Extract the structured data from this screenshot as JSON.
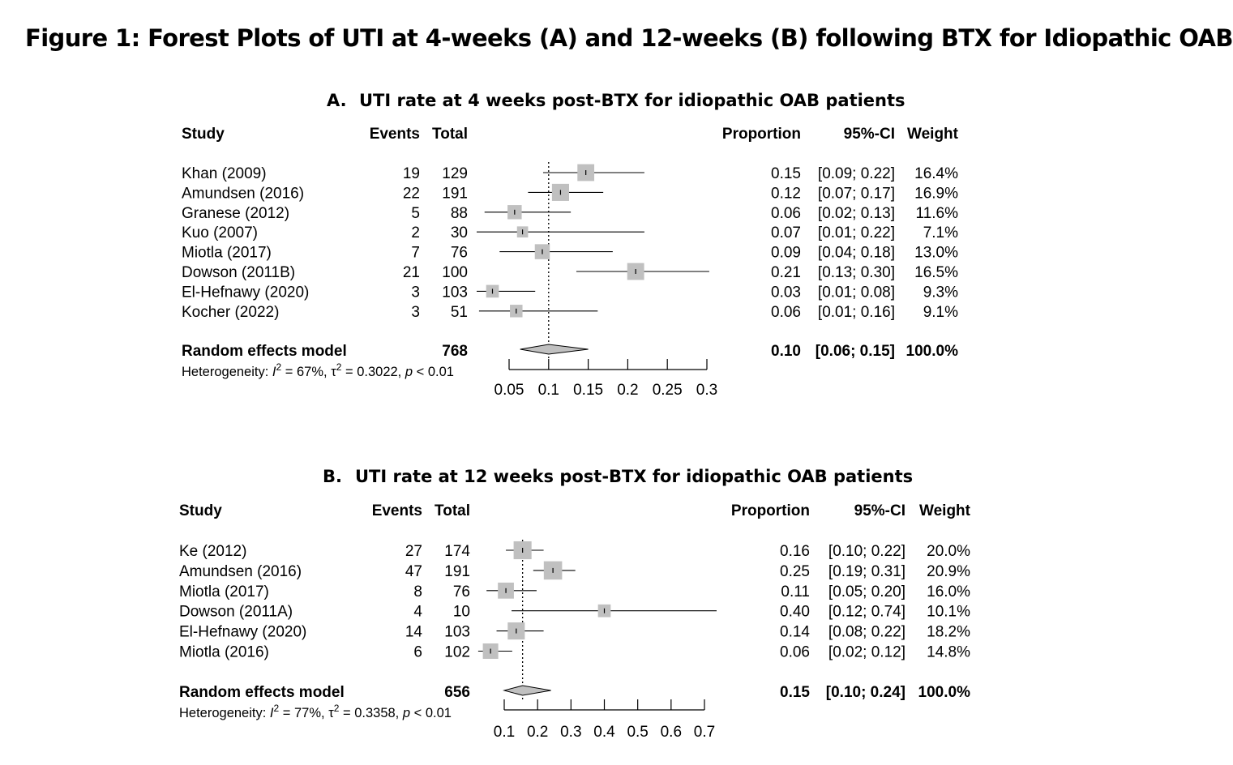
{
  "figure_title": "Figure 1: Forest Plots of UTI at 4-weeks (A) and 12-weeks (B) following BTX for Idiopathic OAB",
  "chart_data": [
    {
      "type": "forest",
      "panel_label": "A.",
      "title": "UTI rate at 4 weeks post-BTX for idiopathic OAB patients",
      "columns": {
        "study": "Study",
        "events": "Events",
        "total": "Total",
        "proportion": "Proportion",
        "ci": "95%-CI",
        "weight": "Weight"
      },
      "studies": [
        {
          "name": "Khan (2009)",
          "events": "19",
          "total": "129",
          "proportion": "0.15",
          "ci": "[0.09; 0.22]",
          "weight": "16.4%",
          "est": 0.147,
          "lo": 0.093,
          "hi": 0.221,
          "w": 16.4
        },
        {
          "name": "Amundsen (2016)",
          "events": "22",
          "total": "191",
          "proportion": "0.12",
          "ci": "[0.07; 0.17]",
          "weight": "16.9%",
          "est": 0.115,
          "lo": 0.074,
          "hi": 0.169,
          "w": 16.9
        },
        {
          "name": "Granese (2012)",
          "events": "5",
          "total": "88",
          "proportion": "0.06",
          "ci": "[0.02; 0.13]",
          "weight": "11.6%",
          "est": 0.057,
          "lo": 0.019,
          "hi": 0.128,
          "w": 11.6
        },
        {
          "name": "Kuo (2007)",
          "events": "2",
          "total": "30",
          "proportion": "0.07",
          "ci": "[0.01; 0.22]",
          "weight": "7.1%",
          "est": 0.067,
          "lo": 0.008,
          "hi": 0.221,
          "w": 7.1
        },
        {
          "name": "Miotla (2017)",
          "events": "7",
          "total": "76",
          "proportion": "0.09",
          "ci": "[0.04; 0.18]",
          "weight": "13.0%",
          "est": 0.092,
          "lo": 0.038,
          "hi": 0.181,
          "w": 13.0
        },
        {
          "name": "Dowson (2011B)",
          "events": "21",
          "total": "100",
          "proportion": "0.21",
          "ci": "[0.13; 0.30]",
          "weight": "16.5%",
          "est": 0.21,
          "lo": 0.135,
          "hi": 0.303,
          "w": 16.5
        },
        {
          "name": "El-Hefnawy (2020)",
          "events": "3",
          "total": "103",
          "proportion": "0.03",
          "ci": "[0.01; 0.08]",
          "weight": "9.3%",
          "est": 0.029,
          "lo": 0.006,
          "hi": 0.083,
          "w": 9.3
        },
        {
          "name": "Kocher (2022)",
          "events": "3",
          "total": "51",
          "proportion": "0.06",
          "ci": "[0.01; 0.16]",
          "weight": "9.1%",
          "est": 0.059,
          "lo": 0.012,
          "hi": 0.162,
          "w": 9.1
        }
      ],
      "pooled": {
        "name": "Random effects model",
        "total": "768",
        "proportion": "0.10",
        "ci": "[0.06; 0.15]",
        "weight": "100.0%",
        "est": 0.1,
        "lo": 0.064,
        "hi": 0.15
      },
      "heterogeneity": {
        "prefix": "Heterogeneity: ",
        "i2_symbol": "I",
        "i2_value": " = 67%, ",
        "tau2_symbol": "τ",
        "tau2_value": " = 0.3022, ",
        "p_symbol": "p",
        "p_value": " < 0.01",
        "sup": "2"
      },
      "x_ticks": [
        0.05,
        0.1,
        0.15,
        0.2,
        0.25,
        0.3
      ],
      "x_tick_labels": [
        "0.05",
        "0.1",
        "0.15",
        "0.2",
        "0.25",
        "0.3"
      ],
      "xlim": [
        0.05,
        0.3
      ],
      "reference_line": 0.1,
      "marker_color": "#c0c0c0",
      "diamond_color": "#c0c0c0"
    },
    {
      "type": "forest",
      "panel_label": "B.",
      "title": "UTI rate at 12 weeks post-BTX for idiopathic OAB patients",
      "columns": {
        "study": "Study",
        "events": "Events",
        "total": "Total",
        "proportion": "Proportion",
        "ci": "95%-CI",
        "weight": "Weight"
      },
      "studies": [
        {
          "name": "Ke (2012)",
          "events": "27",
          "total": "174",
          "proportion": "0.16",
          "ci": "[0.10; 0.22]",
          "weight": "20.0%",
          "est": 0.155,
          "lo": 0.105,
          "hi": 0.218,
          "w": 20.0
        },
        {
          "name": "Amundsen (2016)",
          "events": "47",
          "total": "191",
          "proportion": "0.25",
          "ci": "[0.19; 0.31]",
          "weight": "20.9%",
          "est": 0.246,
          "lo": 0.187,
          "hi": 0.313,
          "w": 20.9
        },
        {
          "name": "Miotla (2017)",
          "events": "8",
          "total": "76",
          "proportion": "0.11",
          "ci": "[0.05; 0.20]",
          "weight": "16.0%",
          "est": 0.105,
          "lo": 0.047,
          "hi": 0.197,
          "w": 16.0
        },
        {
          "name": "Dowson (2011A)",
          "events": "4",
          "total": "10",
          "proportion": "0.40",
          "ci": "[0.12; 0.74]",
          "weight": "10.1%",
          "est": 0.4,
          "lo": 0.122,
          "hi": 0.738,
          "w": 10.1
        },
        {
          "name": "El-Hefnawy (2020)",
          "events": "14",
          "total": "103",
          "proportion": "0.14",
          "ci": "[0.08; 0.22]",
          "weight": "18.2%",
          "est": 0.136,
          "lo": 0.077,
          "hi": 0.218,
          "w": 18.2
        },
        {
          "name": "Miotla (2016)",
          "events": "6",
          "total": "102",
          "proportion": "0.06",
          "ci": "[0.02; 0.12]",
          "weight": "14.8%",
          "est": 0.059,
          "lo": 0.022,
          "hi": 0.124,
          "w": 14.8
        }
      ],
      "pooled": {
        "name": "Random effects model",
        "total": "656",
        "proportion": "0.15",
        "ci": "[0.10; 0.24]",
        "weight": "100.0%",
        "est": 0.155,
        "lo": 0.1,
        "hi": 0.24
      },
      "heterogeneity": {
        "prefix": "Heterogeneity: ",
        "i2_symbol": "I",
        "i2_value": " = 77%, ",
        "tau2_symbol": "τ",
        "tau2_value": " = 0.3358, ",
        "p_symbol": "p",
        "p_value": " < 0.01",
        "sup": "2"
      },
      "x_ticks": [
        0.1,
        0.2,
        0.3,
        0.4,
        0.5,
        0.6,
        0.7
      ],
      "x_tick_labels": [
        "0.1",
        "0.2",
        "0.3",
        "0.4",
        "0.5",
        "0.6",
        "0.7"
      ],
      "xlim": [
        0.1,
        0.7
      ],
      "reference_line": 0.155,
      "marker_color": "#c0c0c0",
      "diamond_color": "#c0c0c0"
    }
  ]
}
